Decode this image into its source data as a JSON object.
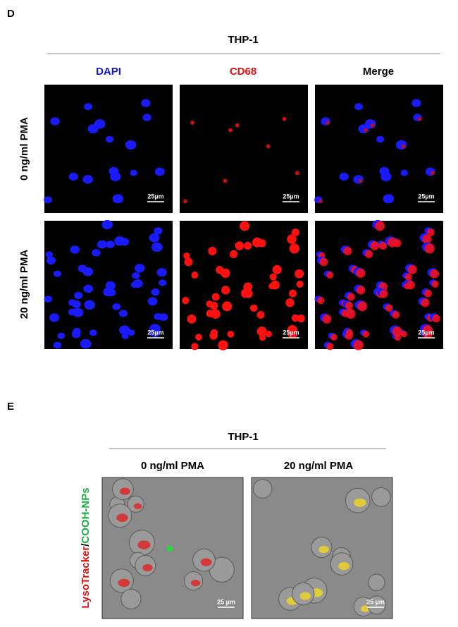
{
  "panel_d": {
    "label": "D",
    "title": "THP-1",
    "columns": [
      "DAPI",
      "CD68",
      "Merge"
    ],
    "rows": [
      "0 ng/ml PMA",
      "20 ng/ml PMA"
    ],
    "scale_bar": "25µm"
  },
  "panel_e": {
    "label": "E",
    "title": "THP-1",
    "columns": [
      "0 ng/ml PMA",
      "20 ng/ml PMA"
    ],
    "side_label": {
      "red": "LysoTracker",
      "separator": "/",
      "green": "COOH-NPs"
    },
    "scale_bar": "25 µm"
  }
}
